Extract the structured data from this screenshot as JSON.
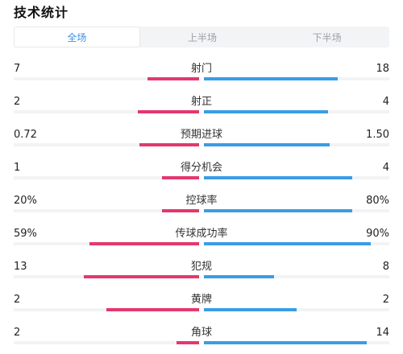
{
  "header": {
    "title": "技术统计"
  },
  "tabs": [
    {
      "label": "全场",
      "active": true
    },
    {
      "label": "上半场",
      "active": false
    },
    {
      "label": "下半场",
      "active": false
    }
  ],
  "colors": {
    "home": "#e4386e",
    "away": "#3a9de6",
    "active_tab": "#3a8fe0"
  },
  "stats": [
    {
      "name": "射门",
      "home": "7",
      "away": "18",
      "home_fill": 0.28,
      "away_fill": 0.72
    },
    {
      "name": "射正",
      "home": "2",
      "away": "4",
      "home_fill": 0.33,
      "away_fill": 0.67
    },
    {
      "name": "预期进球",
      "home": "0.72",
      "away": "1.50",
      "home_fill": 0.32,
      "away_fill": 0.68
    },
    {
      "name": "得分机会",
      "home": "1",
      "away": "4",
      "home_fill": 0.2,
      "away_fill": 0.8
    },
    {
      "name": "控球率",
      "home": "20%",
      "away": "80%",
      "home_fill": 0.2,
      "away_fill": 0.8
    },
    {
      "name": "传球成功率",
      "home": "59%",
      "away": "90%",
      "home_fill": 0.59,
      "away_fill": 0.9
    },
    {
      "name": "犯规",
      "home": "13",
      "away": "8",
      "home_fill": 0.62,
      "away_fill": 0.38
    },
    {
      "name": "黄牌",
      "home": "2",
      "away": "2",
      "home_fill": 0.5,
      "away_fill": 0.5
    },
    {
      "name": "角球",
      "home": "2",
      "away": "14",
      "home_fill": 0.12,
      "away_fill": 0.88
    }
  ]
}
